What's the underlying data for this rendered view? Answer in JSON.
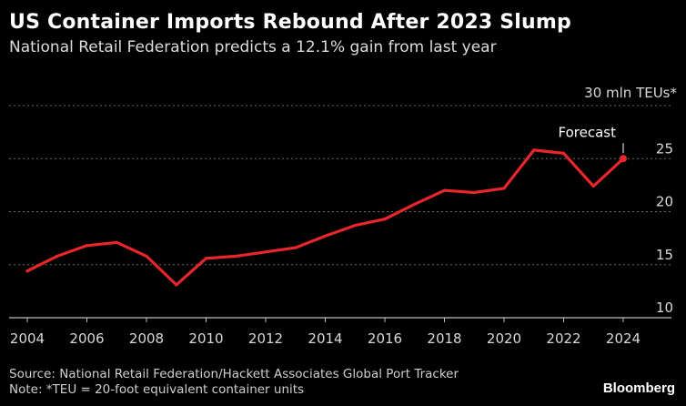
{
  "title": "US Container Imports Rebound After 2023 Slump",
  "subtitle": "National Retail Federation predicts a 12.1% gain from last year",
  "source": "Source: National Retail Federation/Hackett Associates Global Port Tracker",
  "note": "Note: *TEU = 20-foot equivalent container units",
  "brand": "Bloomberg",
  "colors": {
    "background": "#000000",
    "line": "#e8262b",
    "grid": "#6a6a6a",
    "text": "#d8d8d8"
  },
  "chart_data": {
    "type": "line",
    "title": "US Container Imports Rebound After 2023 Slump",
    "subtitle": "National Retail Federation predicts a 12.1% gain from last year",
    "ylabel": "30 mln TEUs*",
    "ylim": [
      10,
      30
    ],
    "yticks": [
      10,
      15,
      20,
      25
    ],
    "xlim": [
      2004,
      2024
    ],
    "xticks": [
      2004,
      2006,
      2008,
      2010,
      2012,
      2014,
      2016,
      2018,
      2020,
      2022,
      2024
    ],
    "grid": true,
    "y_axis_side": "right",
    "series": [
      {
        "x": [
          2004,
          2005,
          2006,
          2007,
          2008,
          2009,
          2010,
          2011,
          2012,
          2013,
          2014,
          2015,
          2016,
          2017,
          2018,
          2019,
          2020,
          2021,
          2022,
          2023,
          2024
        ],
        "values": [
          14.4,
          15.8,
          16.8,
          17.1,
          15.8,
          13.1,
          15.6,
          15.8,
          16.2,
          16.6,
          17.7,
          18.7,
          19.3,
          20.7,
          22.0,
          21.8,
          22.2,
          25.8,
          25.5,
          22.4,
          25.0
        ]
      }
    ],
    "annotations": [
      {
        "text": "Forecast",
        "x": 2024,
        "y": 25.0
      }
    ]
  }
}
